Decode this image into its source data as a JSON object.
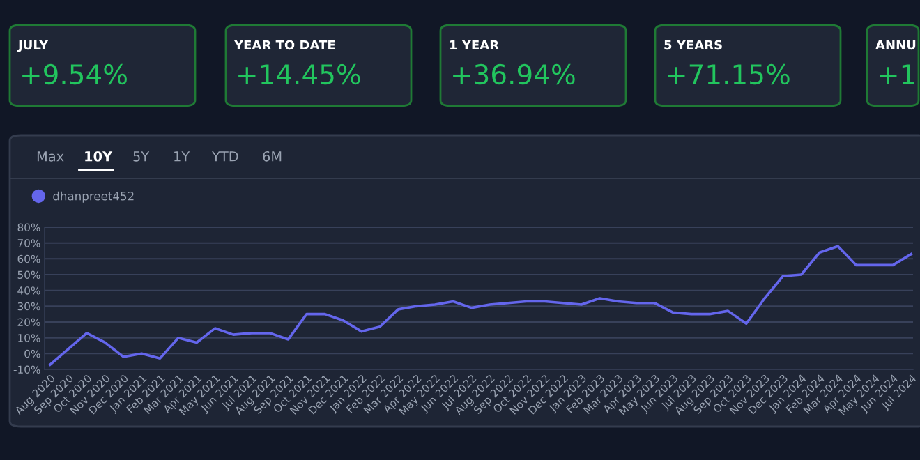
{
  "chart_data": {
    "type": "line",
    "categories": [
      "Aug 2020",
      "Sep 2020",
      "Oct 2020",
      "Nov 2020",
      "Dec 2020",
      "Jan 2021",
      "Feb 2021",
      "Mar 2021",
      "Apr 2021",
      "May 2021",
      "Jun 2021",
      "Jul 2021",
      "Aug 2021",
      "Sep 2021",
      "Oct 2021",
      "Nov 2021",
      "Dec 2021",
      "Jan 2022",
      "Feb 2022",
      "Mar 2022",
      "Apr 2022",
      "May 2022",
      "Jun 2022",
      "Jul 2022",
      "Aug 2022",
      "Sep 2022",
      "Oct 2022",
      "Nov 2022",
      "Dec 2022",
      "Jan 2023",
      "Feb 2023",
      "Mar 2023",
      "Apr 2023",
      "May 2023",
      "Jun 2023",
      "Jul 2023",
      "Aug 2023",
      "Sep 2023",
      "Oct 2023",
      "Nov 2023",
      "Dec 2023",
      "Jan 2024",
      "Feb 2024",
      "Mar 2024",
      "Apr 2024",
      "May 2024",
      "Jun 2024",
      "Jul 2024"
    ],
    "series": [
      {
        "name": "dhanpreet452",
        "color": "#6466ec",
        "values": [
          -7,
          3,
          13,
          7,
          -2,
          0,
          -3,
          10,
          7,
          16,
          12,
          13,
          13,
          9,
          25,
          25,
          21,
          14,
          17,
          28,
          30,
          31,
          33,
          29,
          31,
          32,
          33,
          33,
          32,
          31,
          35,
          33,
          32,
          32,
          26,
          25,
          25,
          27,
          19,
          35,
          49,
          50,
          64,
          68,
          56,
          56,
          56,
          63
        ]
      }
    ],
    "ylim": [
      -10,
      80
    ],
    "yticks": [
      {
        "value": -10,
        "label": "-10%"
      },
      {
        "value": 0,
        "label": "0%"
      },
      {
        "value": 10,
        "label": "10%"
      },
      {
        "value": 20,
        "label": "20%"
      },
      {
        "value": 30,
        "label": "30%"
      },
      {
        "value": 40,
        "label": "40%"
      },
      {
        "value": 50,
        "label": "50%"
      },
      {
        "value": 60,
        "label": "60%"
      },
      {
        "value": 70,
        "label": "70%"
      },
      {
        "value": 80,
        "label": "80%"
      }
    ],
    "grid": "y",
    "legend": "top left",
    "marker": "none",
    "line_style": "solid",
    "annotations": [
      "JULY",
      "+9.54%",
      "YEAR TO DATE",
      "+14.45%",
      "1 YEAR",
      "+36.94%",
      "5 YEARS",
      "+71.15%",
      "ANNU",
      "+1",
      "Max",
      "10Y",
      "5Y",
      "1Y",
      "YTD",
      "6M"
    ]
  }
}
